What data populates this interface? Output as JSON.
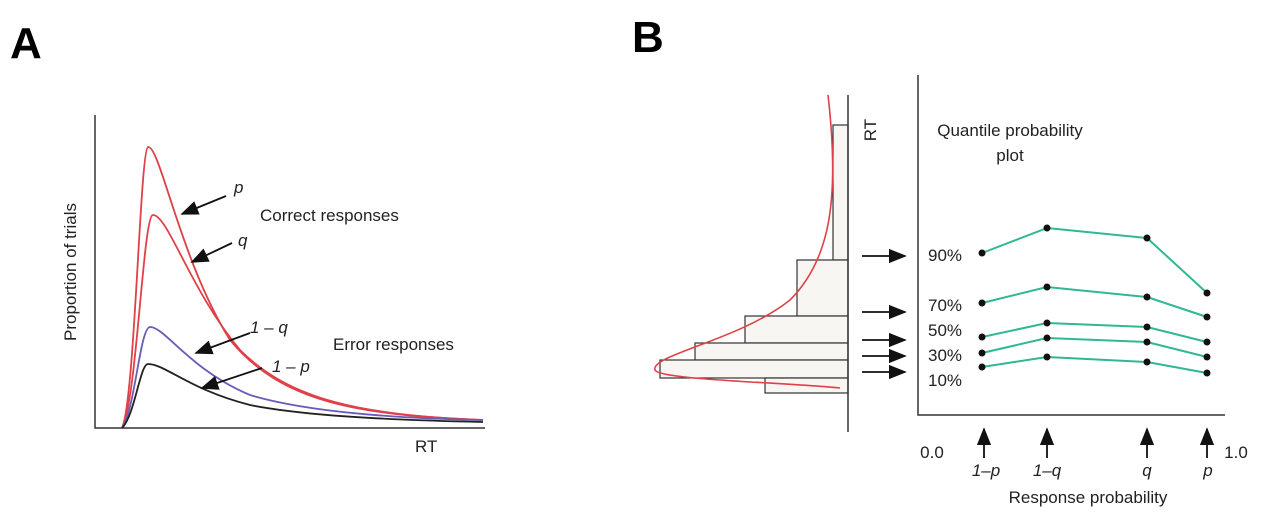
{
  "panel_a": {
    "letter": "A",
    "y_label": "Proportion of trials",
    "x_label": "RT",
    "curve_labels": [
      "p",
      "q",
      "1 – q",
      "1 – p"
    ],
    "group_labels": [
      "Correct responses",
      "Error responses"
    ]
  },
  "panel_b": {
    "letter": "B",
    "hist_axis_label": "RT",
    "plot_title": [
      "Quantile probability",
      "plot"
    ],
    "quantiles": [
      "90%",
      "70%",
      "50%",
      "30%",
      "10%"
    ],
    "x_ends": [
      "0.0",
      "1.0"
    ],
    "x_labels": [
      "1–p",
      "1–q",
      "q",
      "p"
    ],
    "x_label": "Response probability"
  }
}
